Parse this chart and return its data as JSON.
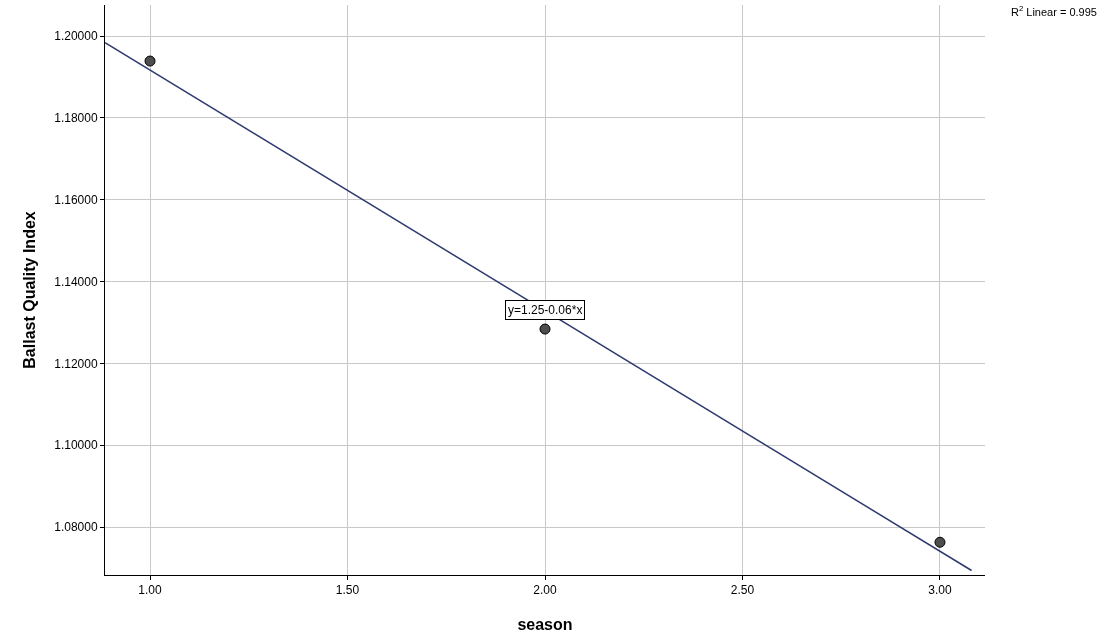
{
  "chart_data": {
    "type": "scatter",
    "xlabel": "season",
    "ylabel": "Ballast Quality Index",
    "xlim": [
      0.886,
      3.114
    ],
    "xticks": [
      {
        "value": 1,
        "label": "1.00"
      },
      {
        "value": 1.5,
        "label": "1.50"
      },
      {
        "value": 2,
        "label": "2.00"
      },
      {
        "value": 2.5,
        "label": "2.50"
      },
      {
        "value": 3,
        "label": "3.00"
      }
    ],
    "ylim": [
      1.0683,
      1.2076
    ],
    "yticks": [
      {
        "value": 1.08,
        "label": "1.08000"
      },
      {
        "value": 1.1,
        "label": "1.10000"
      },
      {
        "value": 1.12,
        "label": "1.12000"
      },
      {
        "value": 1.14,
        "label": "1.14000"
      },
      {
        "value": 1.16,
        "label": "1.16000"
      },
      {
        "value": 1.18,
        "label": "1.18000"
      },
      {
        "value": 1.2,
        "label": "1.20000"
      }
    ],
    "grid": true,
    "marker": "circle",
    "series": [
      {
        "type": "scatter",
        "color": "#4d4d4d",
        "x": [
          1,
          2,
          3
        ],
        "values": [
          1.1939,
          1.1284,
          1.0763
        ]
      },
      {
        "type": "line",
        "color": "#2e3a6e",
        "line_style": "solid",
        "marker": "none",
        "x": [
          0.886,
          3.08
        ],
        "values": [
          1.1984,
          1.0694
        ]
      }
    ],
    "annotations": [
      "R$^{2}$ Linear = 0.995",
      {
        "text": "y=1.25-0.06*x",
        "x": 2,
        "y": 1.133
      }
    ]
  }
}
